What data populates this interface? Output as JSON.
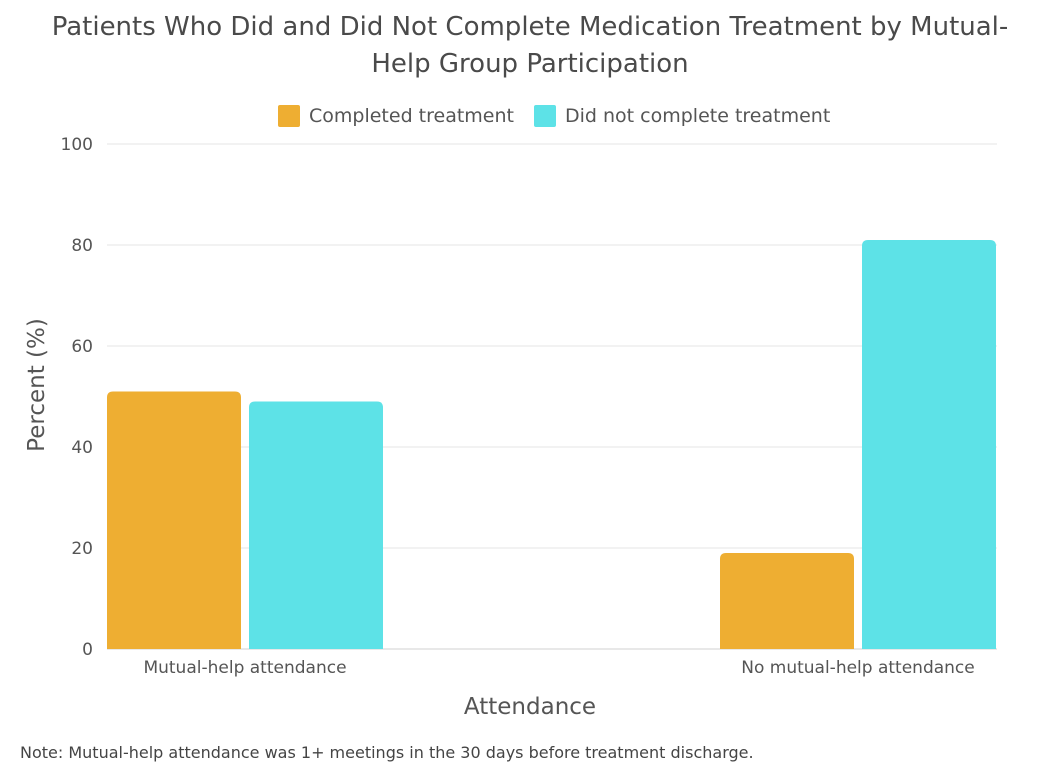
{
  "chart_data": {
    "type": "bar",
    "title_lines": [
      "Patients Who Did and Did Not Complete Medication Treatment by Mutual-",
      "Help Group Participation"
    ],
    "categories": [
      "Mutual-help attendance",
      "No mutual-help attendance"
    ],
    "series": [
      {
        "name": "Completed treatment",
        "color": "#EEAE32",
        "values": [
          51,
          19
        ]
      },
      {
        "name": "Did not complete treatment",
        "color": "#5DE2E7",
        "values": [
          49,
          81
        ]
      }
    ],
    "xlabel": "Attendance",
    "ylabel": "Percent (%)",
    "ylim": [
      0,
      100
    ],
    "yticks": [
      0,
      20,
      40,
      60,
      80,
      100
    ],
    "grid": true,
    "legend_position": "top-center",
    "note": "Note: Mutual-help attendance was 1+ meetings in the 30 days before treatment discharge."
  }
}
